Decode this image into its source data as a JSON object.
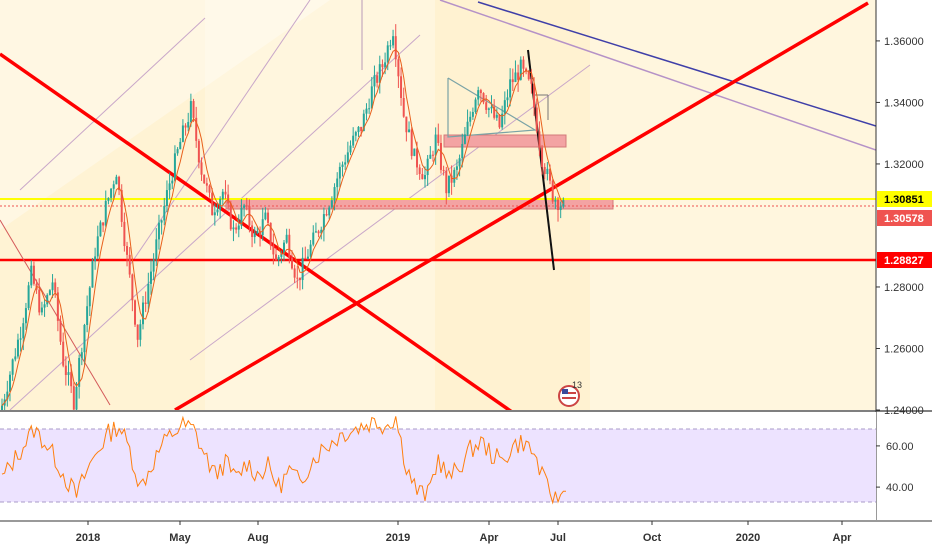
{
  "chart_data": [
    {
      "type": "candlestick",
      "panel": "price",
      "y_ticks": [
        "1.36000",
        "1.34000",
        "1.32000",
        "1.28000",
        "1.26000",
        "1.24000"
      ],
      "ylim": [
        1.24,
        1.372
      ],
      "grid": false,
      "x_ticks": [
        "2018",
        "May",
        "Aug",
        "2019",
        "Apr",
        "Jul",
        "Oct",
        "2020",
        "Apr"
      ],
      "series": [
        {
          "values_weekly_close": [
            1.238,
            1.252,
            1.266,
            1.284,
            1.271,
            1.282,
            1.256,
            1.243,
            1.268,
            1.292,
            1.306,
            1.318,
            1.289,
            1.264,
            1.281,
            1.298,
            1.314,
            1.327,
            1.338,
            1.318,
            1.305,
            1.311,
            1.298,
            1.306,
            1.296,
            1.302,
            1.288,
            1.296,
            1.282,
            1.291,
            1.299,
            1.308,
            1.318,
            1.326,
            1.332,
            1.344,
            1.352,
            1.364,
            1.336,
            1.322,
            1.316,
            1.328,
            1.312,
            1.318,
            1.332,
            1.346,
            1.338,
            1.332,
            1.346,
            1.351,
            1.344,
            1.322,
            1.31,
            1.306
          ]
        }
      ],
      "price_tags": [
        {
          "label": "1.30851",
          "color": "#ffff00",
          "text_color": "#000000"
        },
        {
          "label": "1.30578",
          "color": "#ef5350",
          "text_color": "#ffffff"
        },
        {
          "label": "1.28827",
          "color": "#ff0000",
          "text_color": "#ffffff"
        }
      ],
      "event_badge": {
        "icon": "us-flag-icon",
        "count": "13"
      }
    },
    {
      "type": "line",
      "panel": "rsi",
      "y_ticks": [
        "60.00",
        "40.00"
      ],
      "ylim": [
        25,
        75
      ],
      "bands": [
        30,
        70
      ],
      "color": "#ff7f0e",
      "values": [
        44,
        52,
        60,
        68,
        62,
        54,
        44,
        36,
        48,
        58,
        66,
        70,
        58,
        40,
        50,
        60,
        66,
        70,
        68,
        56,
        46,
        52,
        44,
        52,
        46,
        50,
        40,
        48,
        42,
        52,
        58,
        62,
        66,
        68,
        70,
        72,
        70,
        74,
        50,
        38,
        36,
        54,
        44,
        50,
        58,
        62,
        56,
        52,
        60,
        62,
        56,
        42,
        34,
        38
      ]
    }
  ],
  "colors": {
    "candle_up": "#26a69a",
    "candle_down": "#ef5350",
    "ma_line": "#e8601c",
    "trend_red": "#ff0000",
    "horizontal_yellow": "#ffff00",
    "channel_blue": "#3f3fa8",
    "zone_fill": "#f3a3a3",
    "highlight": "#fff3d0",
    "rsi_band": "#e9dcff"
  }
}
